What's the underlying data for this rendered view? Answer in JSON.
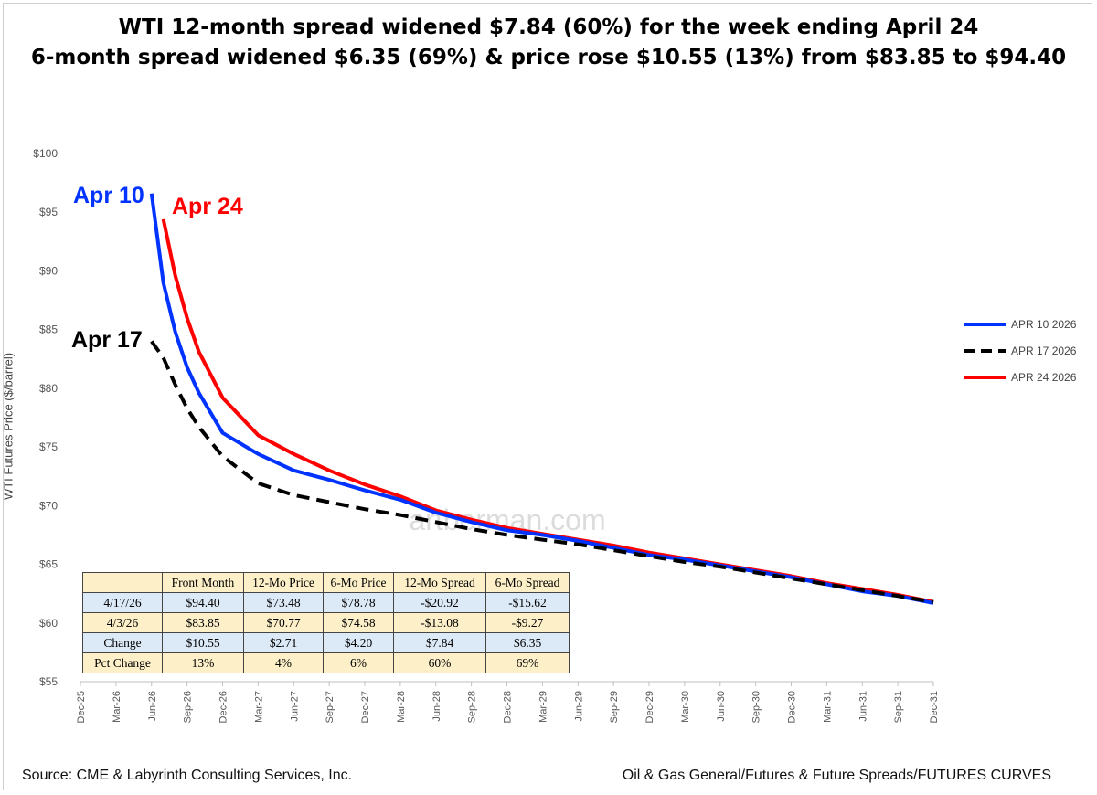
{
  "title": {
    "line1": "WTI  12-month spread widened $7.84 (60%) for the week ending April 24",
    "line2": "6-month spread widened $6.35 (69%) & price rose $10.55 (13%) from $83.85 to $94.40"
  },
  "source": "Source: CME & Labyrinth Consulting Services, Inc.",
  "path_label": "Oil & Gas General/Futures & Future Spreads/FUTURES CURVES",
  "watermark": "artberman.com",
  "chart_data": {
    "type": "line",
    "ylabel": "WTI Futures Price ($/barrel)",
    "xlabel": "",
    "ylim": [
      55,
      100
    ],
    "yticks": [
      "$55",
      "$60",
      "$65",
      "$70",
      "$75",
      "$80",
      "$85",
      "$90",
      "$95",
      "$100"
    ],
    "xticks": [
      "Dec-25",
      "Mar-26",
      "Jun-26",
      "Sep-26",
      "Dec-26",
      "Mar-27",
      "Jun-27",
      "Sep-27",
      "Dec-27",
      "Mar-28",
      "Jun-28",
      "Sep-28",
      "Dec-28",
      "Mar-29",
      "Jun-29",
      "Sep-29",
      "Dec-29",
      "Mar-30",
      "Jun-30",
      "Sep-30",
      "Dec-30",
      "Mar-31",
      "Jun-31",
      "Sep-31",
      "Dec-31"
    ],
    "x_month_index_note": "",
    "grid": false,
    "legend_position": "right",
    "series": [
      {
        "name": "APR 10 2026",
        "label": "Apr 10",
        "color": "#0033ff",
        "dash": false,
        "points": [
          [
            "2026-06",
            96.6
          ],
          [
            "2026-07",
            89.0
          ],
          [
            "2026-08",
            84.8
          ],
          [
            "2026-09",
            81.8
          ],
          [
            "2026-10",
            79.6
          ],
          [
            "2026-12",
            76.2
          ],
          [
            "2027-03",
            74.4
          ],
          [
            "2027-06",
            73.0
          ],
          [
            "2027-09",
            72.2
          ],
          [
            "2027-12",
            71.3
          ],
          [
            "2028-03",
            70.5
          ],
          [
            "2028-06",
            69.4
          ],
          [
            "2028-09",
            68.6
          ],
          [
            "2028-12",
            67.9
          ],
          [
            "2029-03",
            67.5
          ],
          [
            "2029-06",
            67.0
          ],
          [
            "2029-09",
            66.4
          ],
          [
            "2029-12",
            65.8
          ],
          [
            "2030-03",
            65.4
          ],
          [
            "2030-06",
            64.9
          ],
          [
            "2030-09",
            64.4
          ],
          [
            "2030-12",
            63.9
          ],
          [
            "2031-03",
            63.3
          ],
          [
            "2031-06",
            62.7
          ],
          [
            "2031-09",
            62.3
          ],
          [
            "2031-12",
            61.7
          ]
        ]
      },
      {
        "name": "APR 17 2026",
        "label": "Apr 17",
        "color": "#000000",
        "dash": true,
        "points": [
          [
            "2026-06",
            84.0
          ],
          [
            "2026-07",
            82.6
          ],
          [
            "2026-08",
            80.3
          ],
          [
            "2026-09",
            78.3
          ],
          [
            "2026-10",
            76.7
          ],
          [
            "2026-12",
            74.2
          ],
          [
            "2027-03",
            71.9
          ],
          [
            "2027-06",
            70.9
          ],
          [
            "2027-09",
            70.3
          ],
          [
            "2027-12",
            69.7
          ],
          [
            "2028-03",
            69.2
          ],
          [
            "2028-06",
            68.6
          ],
          [
            "2028-09",
            68.0
          ],
          [
            "2028-12",
            67.5
          ],
          [
            "2029-03",
            67.1
          ],
          [
            "2029-06",
            66.7
          ],
          [
            "2029-09",
            66.2
          ],
          [
            "2029-12",
            65.7
          ],
          [
            "2030-03",
            65.2
          ],
          [
            "2030-06",
            64.8
          ],
          [
            "2030-09",
            64.3
          ],
          [
            "2030-12",
            63.8
          ],
          [
            "2031-03",
            63.3
          ],
          [
            "2031-06",
            62.8
          ],
          [
            "2031-09",
            62.3
          ],
          [
            "2031-12",
            61.8
          ]
        ]
      },
      {
        "name": "APR 24 2026",
        "label": "Apr 24",
        "color": "#ff0000",
        "dash": false,
        "points": [
          [
            "2026-07",
            94.4
          ],
          [
            "2026-08",
            89.6
          ],
          [
            "2026-09",
            86.0
          ],
          [
            "2026-10",
            83.1
          ],
          [
            "2026-12",
            79.2
          ],
          [
            "2027-03",
            76.0
          ],
          [
            "2027-06",
            74.4
          ],
          [
            "2027-09",
            73.0
          ],
          [
            "2027-12",
            71.8
          ],
          [
            "2028-03",
            70.8
          ],
          [
            "2028-06",
            69.6
          ],
          [
            "2028-09",
            68.8
          ],
          [
            "2028-12",
            68.1
          ],
          [
            "2029-03",
            67.6
          ],
          [
            "2029-06",
            67.1
          ],
          [
            "2029-09",
            66.6
          ],
          [
            "2029-12",
            66.0
          ],
          [
            "2030-03",
            65.5
          ],
          [
            "2030-06",
            65.0
          ],
          [
            "2030-09",
            64.5
          ],
          [
            "2030-12",
            64.0
          ],
          [
            "2031-03",
            63.4
          ],
          [
            "2031-06",
            62.9
          ],
          [
            "2031-09",
            62.4
          ],
          [
            "2031-12",
            61.8
          ]
        ]
      }
    ]
  },
  "stats_table": {
    "headers": [
      "",
      "Front Month",
      "12-Mo Price",
      "6-Mo Price",
      "12-Mo Spread",
      "6-Mo Spread"
    ],
    "rows": [
      [
        "4/17/26",
        "$94.40",
        "$73.48",
        "$78.78",
        "-$20.92",
        "-$15.62"
      ],
      [
        "4/3/26",
        "$83.85",
        "$70.77",
        "$74.58",
        "-$13.08",
        "-$9.27"
      ],
      [
        "Change",
        "$10.55",
        "$2.71",
        "$4.20",
        "$7.84",
        "$6.35"
      ],
      [
        "Pct Change",
        "13%",
        "4%",
        "6%",
        "60%",
        "69%"
      ]
    ]
  }
}
